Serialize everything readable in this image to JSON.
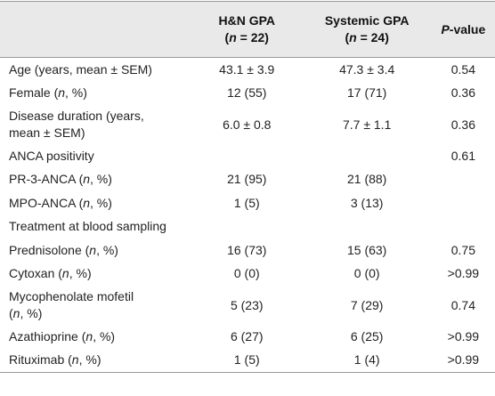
{
  "table": {
    "header": [
      null,
      [
        [
          "H&N GPA"
        ],
        [
          "(",
          {
            "italic": "n"
          },
          " = 22)"
        ]
      ],
      [
        [
          "Systemic GPA"
        ],
        [
          "(",
          {
            "italic": "n"
          },
          " = 24)"
        ]
      ],
      [
        [
          {
            "italic": "P"
          },
          "-value"
        ]
      ]
    ],
    "rows": [
      {
        "label": [
          [
            "Age (years, mean ± SEM)"
          ]
        ],
        "cells": [
          "43.1 ± 3.9",
          "47.3 ± 3.4",
          "0.54"
        ]
      },
      {
        "label": [
          [
            "Female (",
            {
              "italic": "n"
            },
            ", %)"
          ]
        ],
        "cells": [
          "12 (55)",
          "17 (71)",
          "0.36"
        ]
      },
      {
        "label": [
          [
            "Disease duration (years,"
          ],
          [
            "mean ± SEM)"
          ]
        ],
        "cells": [
          "6.0 ± 0.8",
          "7.7 ± 1.1",
          "0.36"
        ]
      },
      {
        "label": [
          [
            "ANCA positivity"
          ]
        ],
        "cells": [
          null,
          null,
          "0.61"
        ]
      },
      {
        "label": [
          [
            "PR-3-ANCA (",
            {
              "italic": "n"
            },
            ", %)"
          ]
        ],
        "cells": [
          "21 (95)",
          "21 (88)",
          null
        ]
      },
      {
        "label": [
          [
            "MPO-ANCA (",
            {
              "italic": "n"
            },
            ", %)"
          ]
        ],
        "cells": [
          "1 (5)",
          "3 (13)",
          null
        ]
      },
      {
        "label": [
          [
            "Treatment at blood sampling"
          ]
        ],
        "cells": [
          null,
          null,
          null
        ]
      },
      {
        "label": [
          [
            "Prednisolone (",
            {
              "italic": "n"
            },
            ", %)"
          ]
        ],
        "cells": [
          "16 (73)",
          "15 (63)",
          "0.75"
        ]
      },
      {
        "label": [
          [
            "Cytoxan (",
            {
              "italic": "n"
            },
            ", %)"
          ]
        ],
        "cells": [
          "0 (0)",
          "0 (0)",
          ">0.99"
        ]
      },
      {
        "label": [
          [
            "Mycophenolate mofetil"
          ],
          [
            "(",
            {
              "italic": "n"
            },
            ", %)"
          ]
        ],
        "cells": [
          "5 (23)",
          "7 (29)",
          "0.74"
        ]
      },
      {
        "label": [
          [
            "Azathioprine (",
            {
              "italic": "n"
            },
            ", %)"
          ]
        ],
        "cells": [
          "6 (27)",
          "6 (25)",
          ">0.99"
        ]
      },
      {
        "label": [
          [
            "Rituximab (",
            {
              "italic": "n"
            },
            ", %)"
          ]
        ],
        "cells": [
          "1 (5)",
          "1 (4)",
          ">0.99"
        ]
      }
    ]
  }
}
